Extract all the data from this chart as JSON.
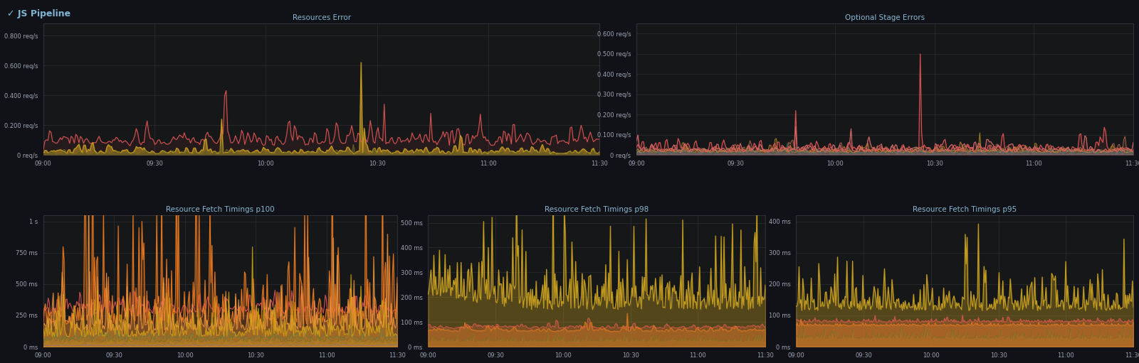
{
  "bg_color": "#111217",
  "panel_bg": "#161719",
  "panel_border": "#333640",
  "title_color": "#8ab8d4",
  "text_color": "#9da5b4",
  "grid_color": "#2c2f36",
  "header_title": "✓ JS Pipeline",
  "header_color": "#7eb6d4",
  "panels": [
    {
      "title": "Resources Error",
      "yticks": [
        "0 req/s",
        "0.200 req/s",
        "0.400 req/s",
        "0.600 req/s",
        "0.800 req/s"
      ],
      "yvals": [
        0,
        0.2,
        0.4,
        0.6,
        0.8
      ],
      "ymax": 0.88
    },
    {
      "title": "Optional Stage Errors",
      "yticks": [
        "0 req/s",
        "0.100 req/s",
        "0.200 req/s",
        "0.300 req/s",
        "0.400 req/s",
        "0.500 req/s",
        "0.600 req/s"
      ],
      "yvals": [
        0,
        0.1,
        0.2,
        0.3,
        0.4,
        0.5,
        0.6
      ],
      "ymax": 0.65
    },
    {
      "title": "Resource Fetch Timings p100",
      "yticks": [
        "0 ms",
        "250 ms",
        "500 ms",
        "750 ms",
        "1 s"
      ],
      "yvals": [
        0,
        250,
        500,
        750,
        1000
      ],
      "ymax": 1050
    },
    {
      "title": "Resource Fetch Timings p98",
      "yticks": [
        "0 ms",
        "100 ms",
        "200 ms",
        "300 ms",
        "400 ms",
        "500 ms"
      ],
      "yvals": [
        0,
        100,
        200,
        300,
        400,
        500
      ],
      "ymax": 530
    },
    {
      "title": "Resource Fetch Timings p95",
      "yticks": [
        "0 ms",
        "100 ms",
        "200 ms",
        "300 ms",
        "400 ms"
      ],
      "yvals": [
        0,
        100,
        200,
        300,
        400
      ],
      "ymax": 420
    }
  ],
  "xticks": [
    "09:00",
    "09:30",
    "10:00",
    "10:30",
    "11:00",
    "11:30"
  ],
  "n_points": 360,
  "colors": {
    "red": "#e05555",
    "dark_red": "#c04040",
    "yellow": "#c8a020",
    "bright_yellow": "#d4aa10",
    "orange": "#e87820",
    "light_orange": "#f09840",
    "green": "#4a7a4a",
    "olive": "#6b6b20",
    "dark_olive": "#555520",
    "pink": "#d06868",
    "salmon": "#c87858",
    "teal": "#3a7070",
    "blue_grey": "#4a6880",
    "purple": "#7060a0",
    "dark_green": "#3a5a3a",
    "mustard": "#a08010"
  }
}
